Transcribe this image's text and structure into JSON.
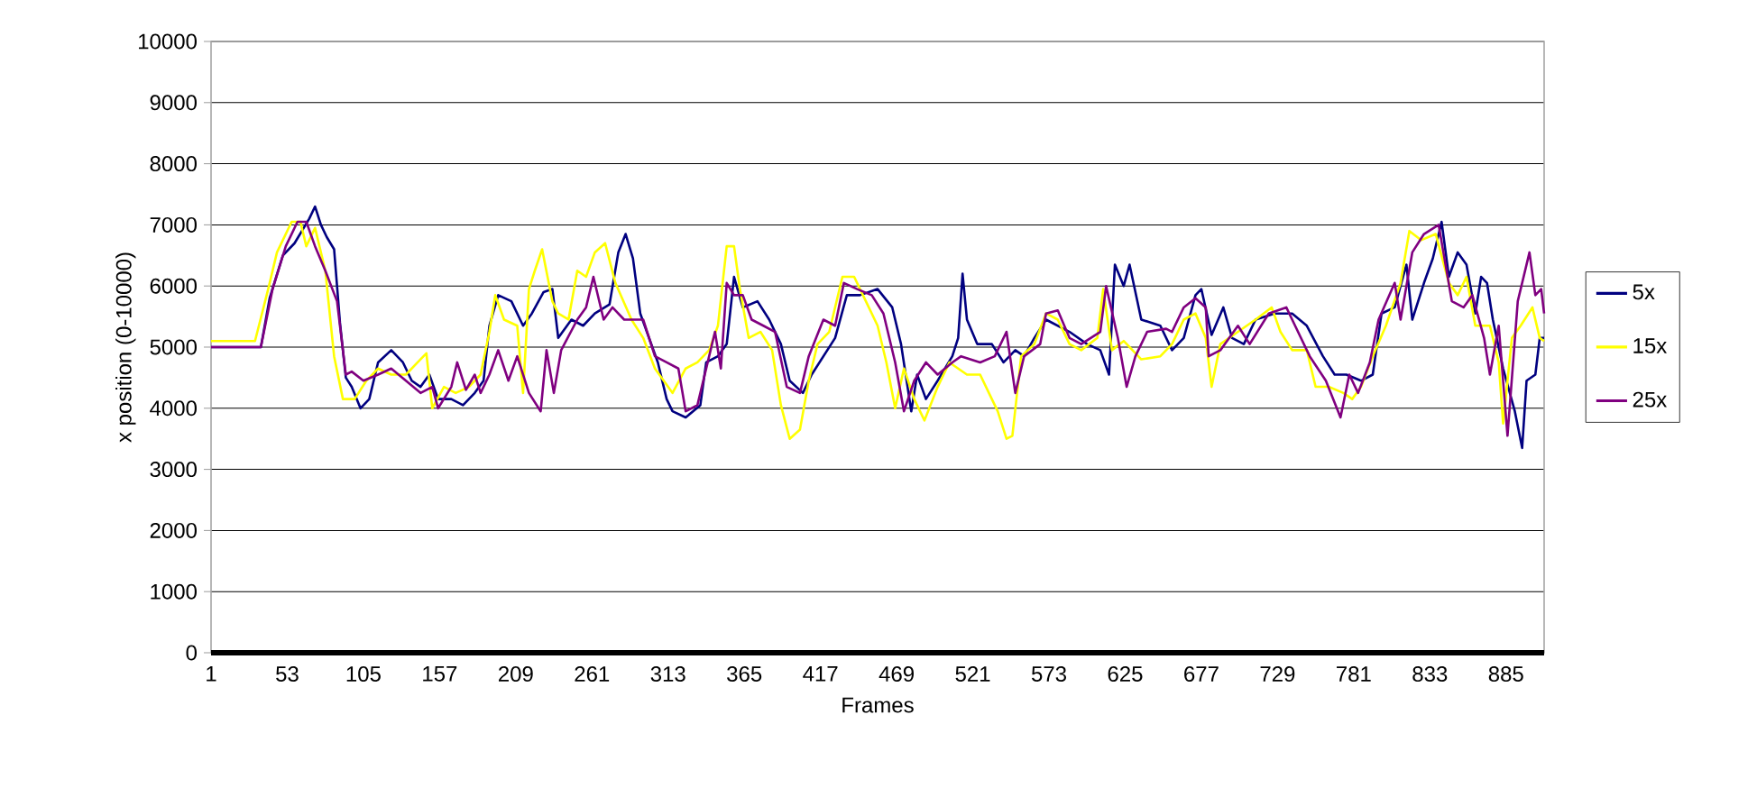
{
  "chart_data": {
    "type": "line",
    "xlabel": "Frames",
    "ylabel": "x position (0-10000)",
    "xlim": [
      1,
      911
    ],
    "xticks": [
      1,
      53,
      105,
      157,
      209,
      261,
      313,
      365,
      417,
      469,
      521,
      573,
      625,
      677,
      729,
      781,
      833,
      885
    ],
    "ylim": [
      0,
      10000
    ],
    "yticks": [
      0,
      1000,
      2000,
      3000,
      4000,
      5000,
      6000,
      7000,
      8000,
      9000,
      10000
    ],
    "grid": "y",
    "legend": "right",
    "marker": "none",
    "line_style": "solid",
    "series": [
      {
        "name": "5x",
        "color": "#000080",
        "x": [
          1,
          35,
          41,
          50,
          58,
          68,
          72,
          76,
          80,
          85,
          89,
          93,
          97,
          103,
          109,
          115,
          124,
          132,
          138,
          144,
          150,
          156,
          165,
          173,
          181,
          187,
          191,
          197,
          206,
          214,
          220,
          228,
          234,
          238,
          247,
          255,
          263,
          273,
          279,
          284,
          289,
          294,
          300,
          306,
          312,
          316,
          325,
          335,
          339,
          347,
          353,
          358,
          364,
          374,
          382,
          390,
          396,
          405,
          411,
          419,
          427,
          435,
          444,
          456,
          466,
          472,
          479,
          483,
          489,
          497,
          507,
          511,
          514,
          517,
          524,
          534,
          542,
          550,
          556,
          563,
          571,
          587,
          599,
          608,
          614,
          618,
          624,
          628,
          636,
          649,
          657,
          665,
          673,
          677,
          684,
          692,
          698,
          706,
          714,
          727,
          739,
          749,
          760,
          768,
          776,
          786,
          794,
          800,
          809,
          817,
          821,
          829,
          835,
          841,
          846,
          852,
          858,
          864,
          868,
          872,
          876,
          883,
          891,
          896,
          899,
          905,
          908,
          911
        ],
        "values": [
          5000,
          5000,
          5800,
          6500,
          6700,
          7100,
          7300,
          7000,
          6800,
          6600,
          5400,
          4500,
          4350,
          4000,
          4150,
          4750,
          4950,
          4750,
          4450,
          4350,
          4550,
          4150,
          4150,
          4050,
          4250,
          4450,
          5350,
          5850,
          5750,
          5350,
          5550,
          5900,
          5950,
          5150,
          5450,
          5350,
          5550,
          5700,
          6550,
          6850,
          6450,
          5550,
          5150,
          4750,
          4150,
          3950,
          3850,
          4050,
          4750,
          4850,
          5050,
          6150,
          5650,
          5750,
          5450,
          5050,
          4450,
          4250,
          4550,
          4850,
          5150,
          5850,
          5850,
          5950,
          5650,
          5050,
          3950,
          4550,
          4150,
          4450,
          4850,
          5150,
          6200,
          5450,
          5050,
          5050,
          4750,
          4950,
          4850,
          5150,
          5450,
          5250,
          5050,
          4950,
          4550,
          6350,
          6000,
          6350,
          5450,
          5350,
          4950,
          5150,
          5850,
          5950,
          5200,
          5650,
          5150,
          5050,
          5450,
          5550,
          5550,
          5350,
          4850,
          4550,
          4550,
          4450,
          4550,
          5550,
          5650,
          6350,
          5450,
          6050,
          6450,
          7050,
          6150,
          6550,
          6350,
          5550,
          6150,
          6050,
          5450,
          4650,
          3950,
          3350,
          4450,
          4550,
          5150,
          5150
        ]
      },
      {
        "name": "15x",
        "color": "#ffff00",
        "x": [
          1,
          31,
          40,
          46,
          56,
          62,
          66,
          72,
          79,
          85,
          91,
          99,
          107,
          115,
          124,
          134,
          142,
          148,
          152,
          160,
          168,
          177,
          185,
          191,
          195,
          201,
          210,
          214,
          218,
          222,
          227,
          234,
          238,
          245,
          251,
          257,
          263,
          270,
          277,
          288,
          296,
          304,
          316,
          325,
          333,
          341,
          347,
          353,
          358,
          362,
          368,
          376,
          384,
          390,
          396,
          403,
          409,
          415,
          423,
          432,
          440,
          448,
          456,
          462,
          468,
          474,
          481,
          488,
          497,
          505,
          517,
          526,
          532,
          538,
          544,
          548,
          554,
          563,
          571,
          579,
          587,
          595,
          606,
          610,
          616,
          624,
          636,
          649,
          657,
          665,
          673,
          680,
          684,
          690,
          702,
          714,
          725,
          731,
          739,
          749,
          755,
          764,
          774,
          780,
          786,
          794,
          803,
          813,
          819,
          827,
          837,
          846,
          852,
          858,
          864,
          874,
          880,
          883,
          889,
          895,
          903,
          908,
          911
        ],
        "values": [
          5100,
          5100,
          5950,
          6550,
          7050,
          7050,
          6650,
          6950,
          6250,
          4850,
          4150,
          4150,
          4450,
          4650,
          4550,
          4550,
          4750,
          4900,
          4000,
          4350,
          4250,
          4350,
          4550,
          5250,
          5850,
          5450,
          5350,
          4250,
          5950,
          6250,
          6600,
          5750,
          5550,
          5450,
          6250,
          6150,
          6550,
          6700,
          6050,
          5450,
          5150,
          4650,
          4250,
          4650,
          4750,
          4950,
          5350,
          6650,
          6650,
          5950,
          5150,
          5250,
          4950,
          4050,
          3500,
          3650,
          4450,
          5050,
          5250,
          6150,
          6150,
          5750,
          5350,
          4750,
          4000,
          4650,
          4150,
          3800,
          4350,
          4750,
          4550,
          4550,
          4250,
          3950,
          3500,
          3550,
          4850,
          5050,
          5550,
          5450,
          5050,
          4950,
          5150,
          5950,
          4950,
          5100,
          4800,
          4850,
          5050,
          5450,
          5550,
          5150,
          4350,
          5050,
          5250,
          5450,
          5650,
          5250,
          4950,
          4950,
          4350,
          4350,
          4250,
          4150,
          4350,
          4850,
          5350,
          6050,
          6900,
          6750,
          6850,
          6050,
          5850,
          6150,
          5350,
          5350,
          4750,
          3750,
          5150,
          5350,
          5650,
          5150,
          5100
        ]
      },
      {
        "name": "25x",
        "color": "#800080",
        "x": [
          1,
          35,
          43,
          52,
          60,
          66,
          72,
          79,
          87,
          93,
          97,
          105,
          115,
          124,
          134,
          144,
          152,
          156,
          165,
          169,
          175,
          181,
          185,
          191,
          197,
          204,
          210,
          218,
          226,
          230,
          235,
          240,
          251,
          257,
          262,
          269,
          275,
          283,
          296,
          304,
          312,
          320,
          325,
          333,
          341,
          345,
          349,
          353,
          358,
          364,
          370,
          378,
          386,
          394,
          403,
          409,
          419,
          427,
          433,
          442,
          452,
          460,
          468,
          474,
          481,
          489,
          497,
          507,
          513,
          526,
          536,
          544,
          550,
          556,
          567,
          571,
          579,
          587,
          595,
          608,
          612,
          620,
          626,
          632,
          640,
          653,
          657,
          665,
          673,
          680,
          682,
          690,
          702,
          710,
          723,
          735,
          741,
          751,
          762,
          772,
          778,
          784,
          792,
          798,
          809,
          813,
          821,
          829,
          839,
          848,
          856,
          862,
          870,
          874,
          880,
          886,
          893,
          901,
          905,
          909,
          911
        ],
        "values": [
          5000,
          5000,
          5950,
          6650,
          7050,
          7050,
          6650,
          6250,
          5750,
          4550,
          4600,
          4450,
          4550,
          4650,
          4450,
          4250,
          4350,
          4000,
          4350,
          4750,
          4300,
          4550,
          4250,
          4550,
          4950,
          4450,
          4850,
          4250,
          3950,
          4950,
          4250,
          4950,
          5450,
          5650,
          6150,
          5450,
          5650,
          5450,
          5450,
          4850,
          4750,
          4650,
          3950,
          4050,
          4850,
          5250,
          4650,
          6050,
          5850,
          5850,
          5450,
          5350,
          5250,
          4350,
          4250,
          4850,
          5450,
          5350,
          6050,
          5950,
          5850,
          5550,
          4750,
          3950,
          4450,
          4750,
          4550,
          4750,
          4850,
          4750,
          4850,
          5250,
          4250,
          4850,
          5050,
          5550,
          5600,
          5150,
          5050,
          5250,
          6000,
          5150,
          4350,
          4850,
          5250,
          5300,
          5250,
          5650,
          5800,
          5650,
          4850,
          4950,
          5350,
          5050,
          5550,
          5650,
          5350,
          4850,
          4450,
          3850,
          4550,
          4250,
          4750,
          5450,
          6050,
          5450,
          6550,
          6850,
          7000,
          5750,
          5650,
          5850,
          5150,
          4550,
          5350,
          3550,
          5750,
          6550,
          5850,
          5950,
          5550
        ]
      }
    ]
  }
}
